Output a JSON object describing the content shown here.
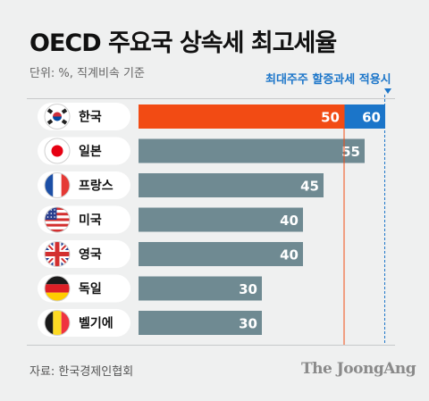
{
  "title": "OECD 주요국 상속세 최고세율",
  "unit_note": "단위: %, 직계비속 기준",
  "annotation": "최대주주 할증과세 적용시",
  "source": "자료: 한국경제인협회",
  "logo": "The JoongAng",
  "colors": {
    "bar_default": "#6f8a92",
    "bar_korea": "#f24b14",
    "bar_korea_surcharge": "#1b75c9",
    "reference_line": "#f24b14",
    "surcharge_line": "#1b75c9",
    "background": "#eff0f0"
  },
  "chart_data": {
    "type": "bar",
    "orientation": "horizontal",
    "categories": [
      "한국",
      "일본",
      "프랑스",
      "미국",
      "영국",
      "독일",
      "벨기에"
    ],
    "flag_icons": [
      "korea-flag-icon",
      "japan-flag-icon",
      "france-flag-icon",
      "usa-flag-icon",
      "uk-flag-icon",
      "germany-flag-icon",
      "belgium-flag-icon"
    ],
    "values": [
      50,
      55,
      45,
      40,
      40,
      30,
      30
    ],
    "value_labels": [
      "50",
      "55",
      "45",
      "40",
      "40",
      "30",
      "30"
    ],
    "korea_surcharge_value": 60,
    "korea_surcharge_label": "60",
    "reference_line_value": 50,
    "surcharge_line_value": 60,
    "xlim": [
      0,
      60
    ],
    "title": "OECD 주요국 상속세 최고세율",
    "xlabel": "",
    "ylabel": ""
  }
}
